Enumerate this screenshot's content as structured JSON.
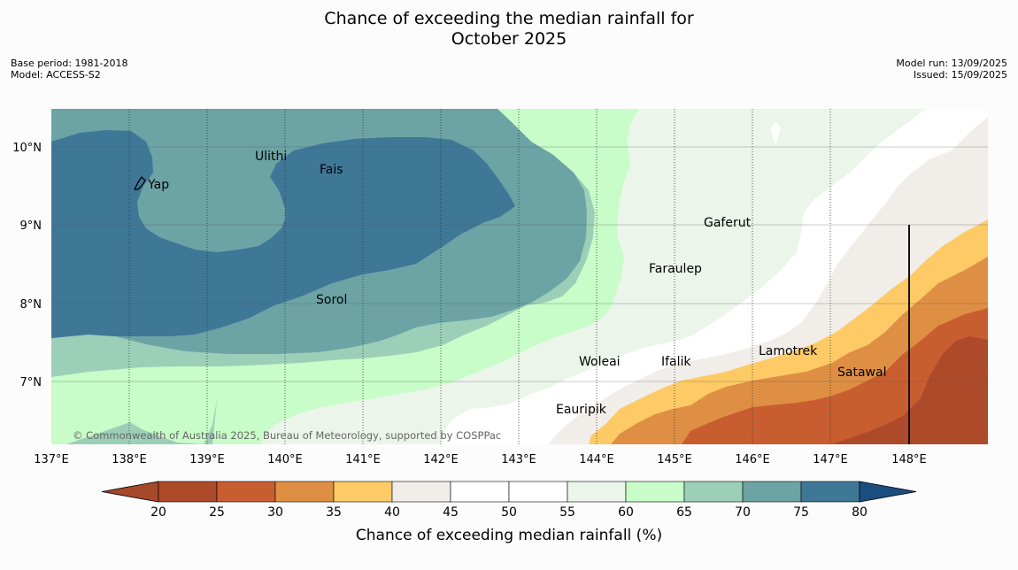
{
  "title": {
    "line1": "Chance of exceeding the median rainfall for",
    "line2": "October 2025"
  },
  "meta_left": {
    "base_period": "Base period: 1981-2018",
    "model": "Model: ACCESS-S2"
  },
  "meta_right": {
    "model_run": "Model run: 13/09/2025",
    "issued": "Issued: 15/09/2025"
  },
  "map": {
    "lon_labels": [
      "137°E",
      "138°E",
      "139°E",
      "140°E",
      "141°E",
      "142°E",
      "143°E",
      "144°E",
      "145°E",
      "146°E",
      "147°E",
      "148°E"
    ],
    "lat_labels": [
      "10°N",
      "9°N",
      "8°N",
      "7°N"
    ],
    "places": [
      {
        "name": "Yap"
      },
      {
        "name": "Ulithi"
      },
      {
        "name": "Fais"
      },
      {
        "name": "Sorol"
      },
      {
        "name": "Gaferut"
      },
      {
        "name": "Faraulep"
      },
      {
        "name": "Woleai"
      },
      {
        "name": "Ifalik"
      },
      {
        "name": "Lamotrek"
      },
      {
        "name": "Satawal"
      },
      {
        "name": "Eauripik"
      }
    ],
    "copyright": "© Commonwealth of Australia 2025, Bureau of Meteorology, supported by COSPPac"
  },
  "colorbar": {
    "ticks": [
      "20",
      "25",
      "30",
      "35",
      "40",
      "45",
      "50",
      "55",
      "60",
      "65",
      "70",
      "75",
      "80"
    ],
    "colors": [
      "#a6492a",
      "#ad4a2a",
      "#c85e30",
      "#df8f44",
      "#fdca66",
      "#f1ede8",
      "#ffffff",
      "#ffffff",
      "#ebf5ea",
      "#c8fcc8",
      "#9ccfb8",
      "#6ca3a5",
      "#3f7797",
      "#1a4e7e"
    ],
    "label": "Chance of exceeding median rainfall (%)"
  },
  "colors": {
    "c75_80": "#3f7797",
    "c70_75": "#6ca3a5",
    "c65_70": "#9ccfb8",
    "c60_65": "#c8fcc8",
    "c55_60": "#ebf5ea",
    "c50_55": "#ffffff",
    "c40_45": "#f1ede8",
    "c35_40": "#fdca66",
    "c30_35": "#df8f44",
    "c25_30": "#c85e30",
    "c20_25": "#ad4a2a"
  }
}
